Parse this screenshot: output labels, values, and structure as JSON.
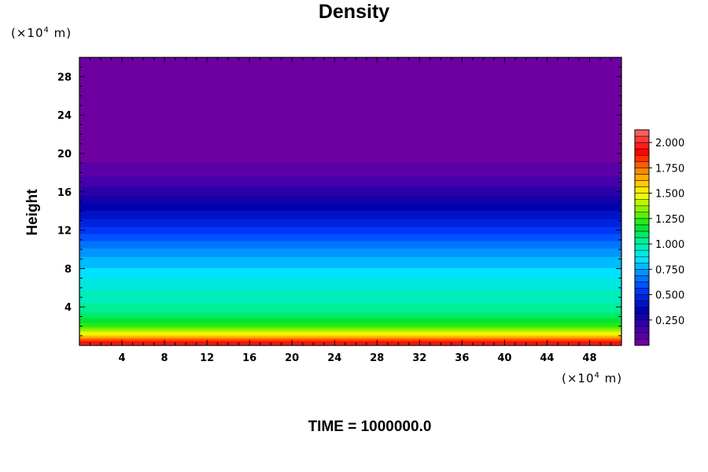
{
  "page": {
    "title": "Density",
    "footer": "TIME = 1000000.0"
  },
  "chart_data": {
    "type": "heatmap",
    "title": "Density",
    "xlabel": "",
    "ylabel": "Height",
    "x_unit": "(×10⁴ m)",
    "y_unit": "(×10⁴ m)",
    "unit_prefix": "(×10",
    "unit_exp": "4",
    "unit_suffix": " m)",
    "xlim": [
      0,
      51
    ],
    "ylim": [
      0,
      30
    ],
    "x_ticks": [
      4,
      8,
      12,
      16,
      20,
      24,
      28,
      32,
      36,
      40,
      44,
      48
    ],
    "x_tick_labels": [
      "4",
      "8",
      "12",
      "16",
      "20",
      "24",
      "28",
      "32",
      "36",
      "40",
      "44",
      "48"
    ],
    "y_ticks": [
      4,
      8,
      12,
      16,
      20,
      24,
      28
    ],
    "y_tick_labels": [
      "4",
      "8",
      "12",
      "16",
      "20",
      "24",
      "28"
    ],
    "colorbar": {
      "range": [
        0,
        2.125
      ],
      "levels": 34,
      "tick_values": [
        0.25,
        0.5,
        0.75,
        1.0,
        1.25,
        1.5,
        1.75,
        2.0
      ],
      "tick_labels": [
        "0.250",
        "0.500",
        "0.750",
        "1.000",
        "1.250",
        "1.500",
        "1.750",
        "2.000"
      ],
      "colormap": "rainbow (purple–blue–cyan–green–yellow–orange–red–pink)"
    },
    "profile": {
      "description": "density varies with height only",
      "height": [
        0,
        0.5,
        1,
        1.5,
        2,
        3,
        4,
        5,
        6,
        7,
        8,
        9,
        10,
        11,
        12,
        13,
        14,
        15,
        16,
        17,
        18,
        19.5,
        30
      ],
      "density": [
        2.05,
        1.85,
        1.6,
        1.4,
        1.25,
        1.1,
        1.02,
        0.97,
        0.93,
        0.88,
        0.82,
        0.77,
        0.7,
        0.62,
        0.53,
        0.45,
        0.38,
        0.3,
        0.22,
        0.16,
        0.1,
        0.05,
        0.03
      ]
    }
  }
}
